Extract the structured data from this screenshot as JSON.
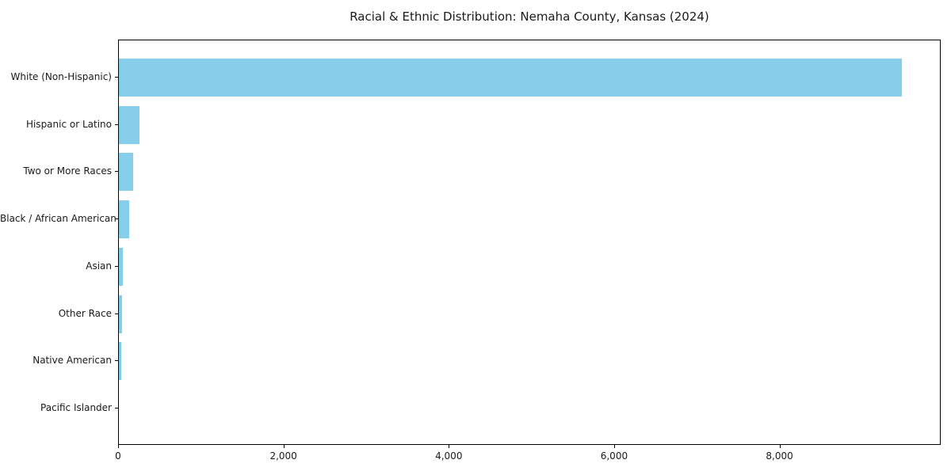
{
  "chart_data": {
    "type": "bar",
    "orientation": "horizontal",
    "title": "Racial & Ethnic Distribution: Nemaha County, Kansas (2024)",
    "categories": [
      "White (Non-Hispanic)",
      "Hispanic or Latino",
      "Two or More Races",
      "Black / African American",
      "Asian",
      "Other Race",
      "Native American",
      "Pacific Islander"
    ],
    "values": [
      9470,
      250,
      170,
      120,
      50,
      35,
      30,
      0
    ],
    "xlabel": "",
    "ylabel": "",
    "xlim": [
      0,
      9950
    ],
    "x_ticks": [
      {
        "value": 0,
        "label": "0"
      },
      {
        "value": 2000,
        "label": "2,000"
      },
      {
        "value": 4000,
        "label": "4,000"
      },
      {
        "value": 6000,
        "label": "6,000"
      },
      {
        "value": 8000,
        "label": "8,000"
      }
    ],
    "grid": false,
    "legend": "none",
    "bar_color": "#87CEEB",
    "spine_color": "#000000",
    "text_color": "#1a1a1a",
    "background": "#ffffff"
  }
}
